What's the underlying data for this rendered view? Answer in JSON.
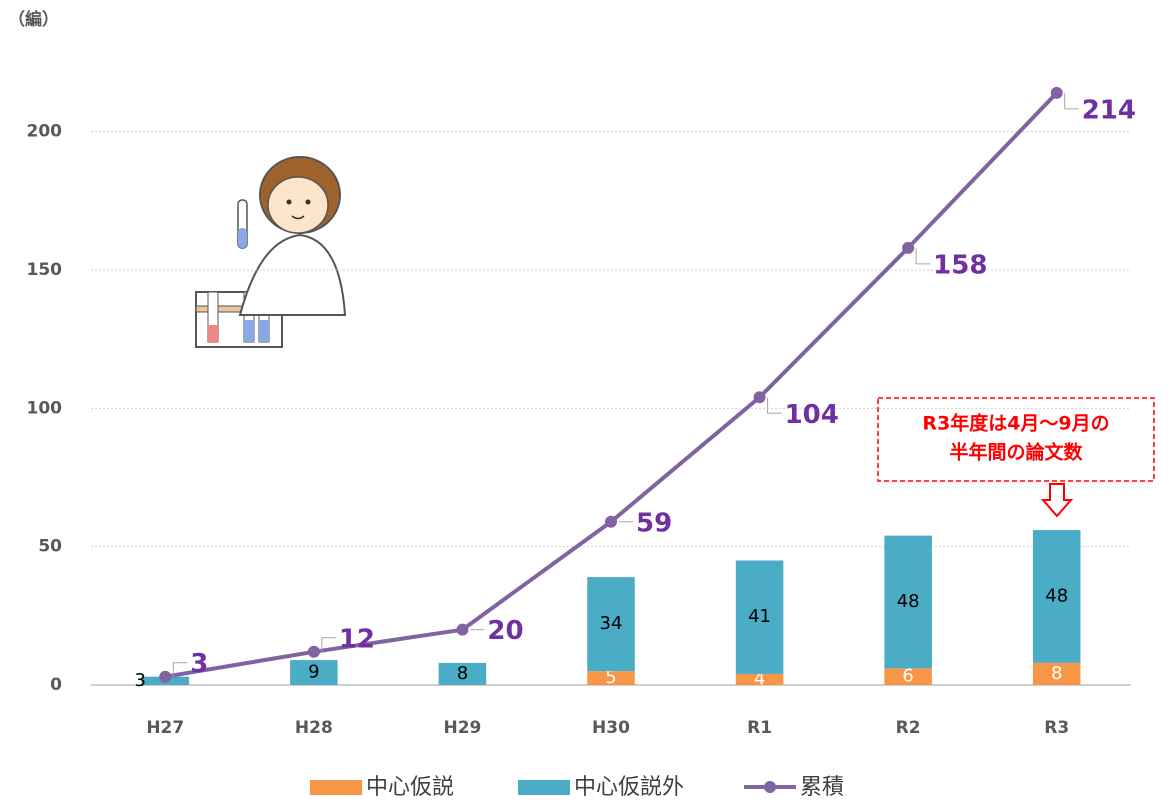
{
  "chart_data": {
    "type": "bar_line",
    "y_label": "（編）",
    "categories": [
      "H27",
      "H28",
      "H29",
      "H30",
      "R1",
      "R2",
      "R3"
    ],
    "series": [
      {
        "name": "中心仮説",
        "color": "#f79646",
        "kind": "bar",
        "values": [
          null,
          null,
          null,
          5,
          4,
          6,
          8
        ]
      },
      {
        "name": "中心仮説外",
        "color": "#4bacc6",
        "kind": "bar",
        "values": [
          3,
          9,
          8,
          34,
          41,
          48,
          48
        ]
      },
      {
        "name": "累積",
        "color": "#8064a2",
        "kind": "line",
        "values": [
          3,
          12,
          20,
          59,
          104,
          158,
          214
        ]
      }
    ],
    "ylim": [
      0,
      240
    ],
    "yticks": [
      0,
      50,
      100,
      150,
      200
    ],
    "grid": true,
    "annotation": [
      "R3年度は4月～9月の",
      "半年間の論文数"
    ]
  }
}
